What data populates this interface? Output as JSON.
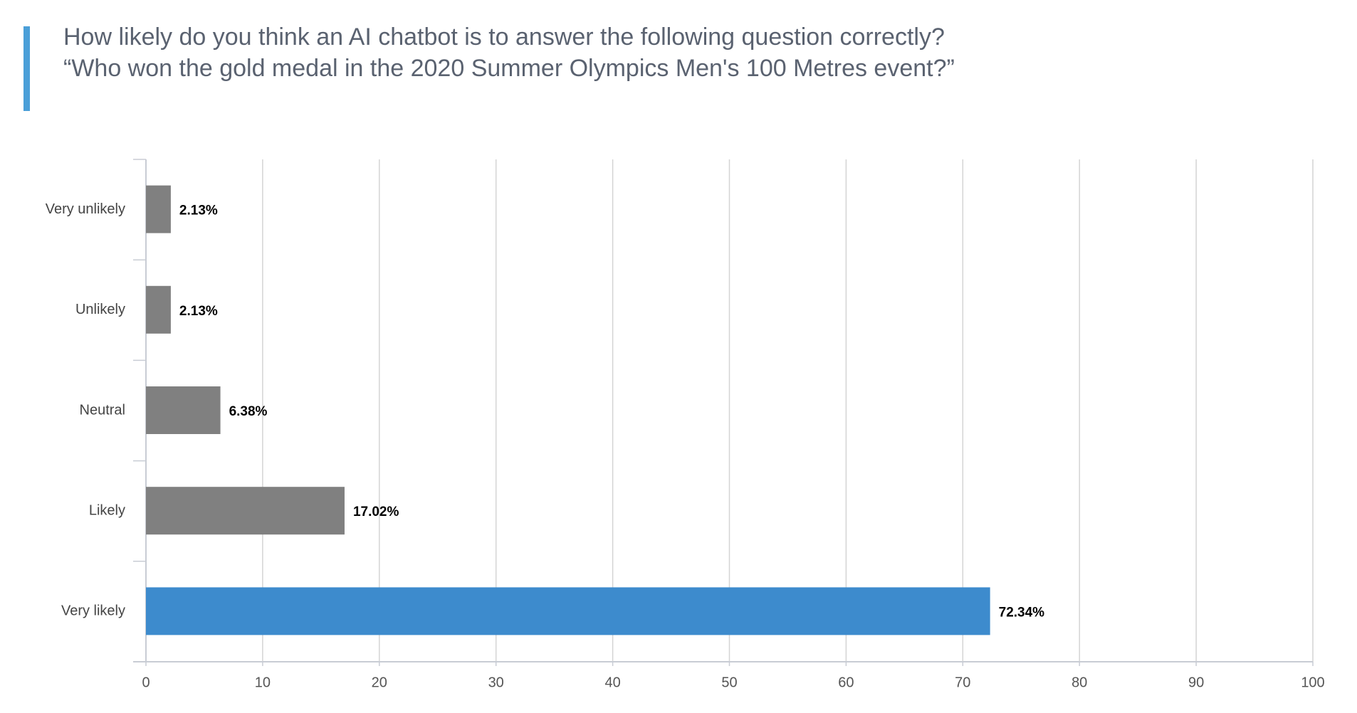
{
  "chart_data": {
    "type": "barh",
    "title": "How likely do you think an AI chatbot is to answer the following question correctly?  “Who won the gold medal in the 2020 Summer Olympics Men's 100 Metres event?”",
    "categories": [
      "Very unlikely",
      "Unlikely",
      "Neutral",
      "Likely",
      "Very likely"
    ],
    "values": [
      2.13,
      2.13,
      6.38,
      17.02,
      72.34
    ],
    "value_labels": [
      "2.13%",
      "2.13%",
      "6.38%",
      "17.02%",
      "72.34%"
    ],
    "colors": [
      "#808080",
      "#808080",
      "#808080",
      "#808080",
      "#3d8bcd"
    ],
    "xlim": [
      0,
      100
    ],
    "xticks": [
      0,
      10,
      20,
      30,
      40,
      50,
      60,
      70,
      80,
      90,
      100
    ],
    "grid": true
  }
}
